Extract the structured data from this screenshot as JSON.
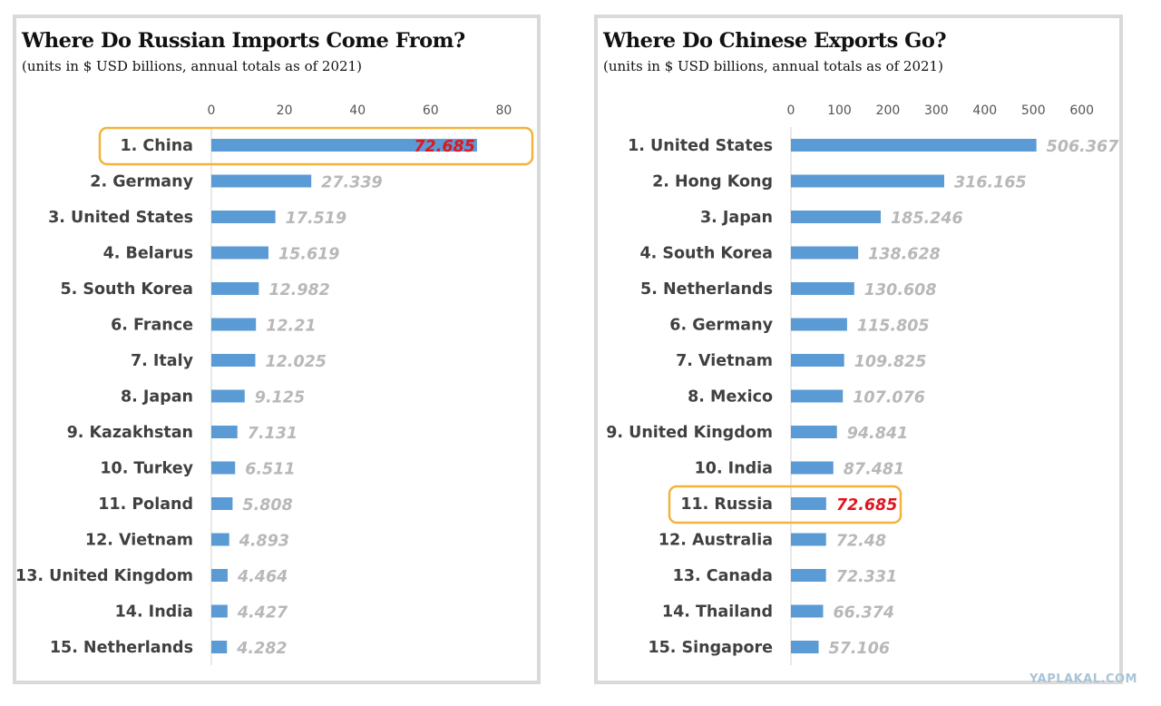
{
  "watermark": "YAPLAKAL.COM",
  "colors": {
    "bar": "#5b9bd5",
    "value": "#b8b8b8",
    "highlight_value": "#e0161e",
    "highlight_box": "#f2b33d",
    "label": "#404040"
  },
  "chart_data": [
    {
      "type": "bar",
      "orientation": "horizontal",
      "title": "Where Do Russian Imports Come From?",
      "subtitle": "(units in $ USD billions, annual totals as of 2021)",
      "categories": [
        "1. China",
        "2. Germany",
        "3. United States",
        "4. Belarus",
        "5. South Korea",
        "6. France",
        "7. Italy",
        "8. Japan",
        "9. Kazakhstan",
        "10. Turkey",
        "11. Poland",
        "12. Vietnam",
        "13. United Kingdom",
        "14. India",
        "15. Netherlands"
      ],
      "values": [
        72.685,
        27.339,
        17.519,
        15.619,
        12.982,
        12.21,
        12.025,
        9.125,
        7.131,
        6.511,
        5.808,
        4.893,
        4.464,
        4.427,
        4.282
      ],
      "value_labels": [
        "72.685",
        "27.339",
        "17.519",
        "15.619",
        "12.982",
        "12.21",
        "12.025",
        "9.125",
        "7.131",
        "6.511",
        "5.808",
        "4.893",
        "4.464",
        "4.427",
        "4.282"
      ],
      "ticks": [
        "0",
        "20",
        "40",
        "60",
        "80"
      ],
      "xlim": [
        0,
        80
      ],
      "highlight_index": 0,
      "axis_position": "top",
      "grid": false
    },
    {
      "type": "bar",
      "orientation": "horizontal",
      "title": "Where Do Chinese Exports Go?",
      "subtitle": "(units in $ USD billions, annual totals as of 2021)",
      "categories": [
        "1. United States",
        "2. Hong Kong",
        "3. Japan",
        "4. South Korea",
        "5. Netherlands",
        "6. Germany",
        "7. Vietnam",
        "8. Mexico",
        "9. United Kingdom",
        "10. India",
        "11. Russia",
        "12. Australia",
        "13. Canada",
        "14. Thailand",
        "15. Singapore"
      ],
      "values": [
        506.367,
        316.165,
        185.246,
        138.628,
        130.608,
        115.805,
        109.825,
        107.076,
        94.841,
        87.481,
        72.685,
        72.48,
        72.331,
        66.374,
        57.106
      ],
      "value_labels": [
        "506.367",
        "316.165",
        "185.246",
        "138.628",
        "130.608",
        "115.805",
        "109.825",
        "107.076",
        "94.841",
        "87.481",
        "72.685",
        "72.48",
        "72.331",
        "66.374",
        "57.106"
      ],
      "ticks": [
        "0",
        "100",
        "200",
        "300",
        "400",
        "500",
        "600"
      ],
      "xlim": [
        0,
        600
      ],
      "highlight_index": 10,
      "axis_position": "top",
      "grid": false
    }
  ]
}
